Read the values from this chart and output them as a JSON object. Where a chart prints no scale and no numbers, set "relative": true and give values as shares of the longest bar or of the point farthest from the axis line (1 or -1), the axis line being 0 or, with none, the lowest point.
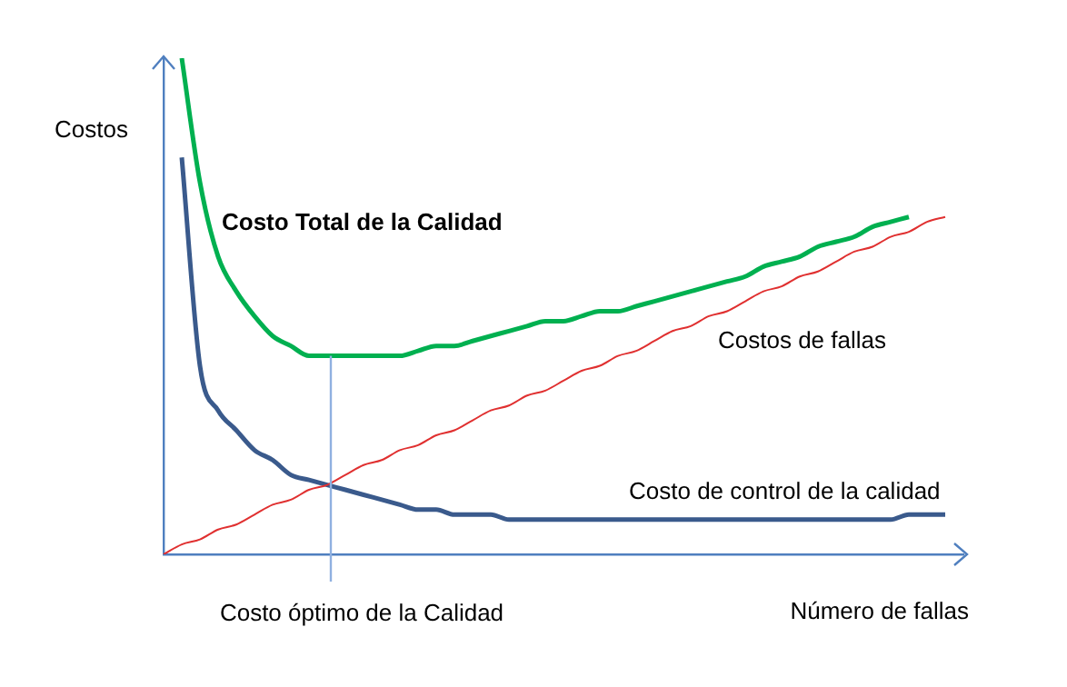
{
  "chart_data": {
    "type": "line",
    "relative": true,
    "marker": "none",
    "tick_labels": false,
    "grid": false,
    "legend": false,
    "xlabel": "Número de fallas",
    "ylabel": "Costos",
    "categories": [
      null,
      null,
      null,
      null,
      null,
      null,
      null,
      null,
      null,
      null,
      null,
      null,
      null,
      null,
      null,
      null,
      null,
      null,
      null,
      null,
      null,
      null,
      null,
      null,
      null,
      null,
      null,
      null,
      null,
      null,
      null,
      null,
      null,
      null,
      null,
      null,
      null,
      null,
      null,
      null,
      null,
      null,
      null,
      null,
      null
    ],
    "series": [
      {
        "name": "Costo Total de la Calidad",
        "color": "#00b050",
        "values": [
          null,
          1,
          0.75,
          0.6,
          0.53,
          0.48,
          0.44,
          0.42,
          0.4,
          0.4,
          0.4,
          0.4,
          0.4,
          0.4,
          0.41,
          0.42,
          0.42,
          0.43,
          0.44,
          0.45,
          0.46,
          0.47,
          0.47,
          0.48,
          0.49,
          0.49,
          0.5,
          0.51,
          0.52,
          0.53,
          0.54,
          0.55,
          0.56,
          0.58,
          0.59,
          0.6,
          0.62,
          0.63,
          0.64,
          0.66,
          0.67,
          0.68,
          null,
          null,
          null
        ]
      },
      {
        "name": "Costos de fallas",
        "color": "#e03030",
        "values": [
          0,
          0.02,
          0.03,
          0.05,
          0.06,
          0.08,
          0.1,
          0.11,
          0.13,
          0.14,
          0.16,
          0.18,
          0.19,
          0.21,
          0.22,
          0.24,
          0.25,
          0.27,
          0.29,
          0.3,
          0.32,
          0.33,
          0.35,
          0.37,
          0.38,
          0.4,
          0.41,
          0.43,
          0.45,
          0.46,
          0.48,
          0.49,
          0.51,
          0.53,
          0.54,
          0.56,
          0.57,
          0.59,
          0.61,
          0.62,
          0.64,
          0.65,
          0.67,
          0.68,
          null
        ]
      },
      {
        "name": "Costo de control de la calidad",
        "color": "#3a5a8c",
        "values": [
          null,
          0.8,
          0.38,
          0.29,
          0.25,
          0.21,
          0.19,
          0.16,
          0.15,
          0.14,
          0.13,
          0.12,
          0.11,
          0.1,
          0.09,
          0.09,
          0.08,
          0.08,
          0.08,
          0.07,
          0.07,
          0.07,
          0.07,
          0.07,
          0.07,
          0.07,
          0.07,
          0.07,
          0.07,
          0.07,
          0.07,
          0.07,
          0.07,
          0.07,
          0.07,
          0.07,
          0.07,
          0.07,
          0.07,
          0.07,
          0.07,
          0.08,
          0.08,
          0.08,
          null
        ]
      }
    ],
    "annotations": [
      "Costo óptimo de la Calidad"
    ]
  }
}
